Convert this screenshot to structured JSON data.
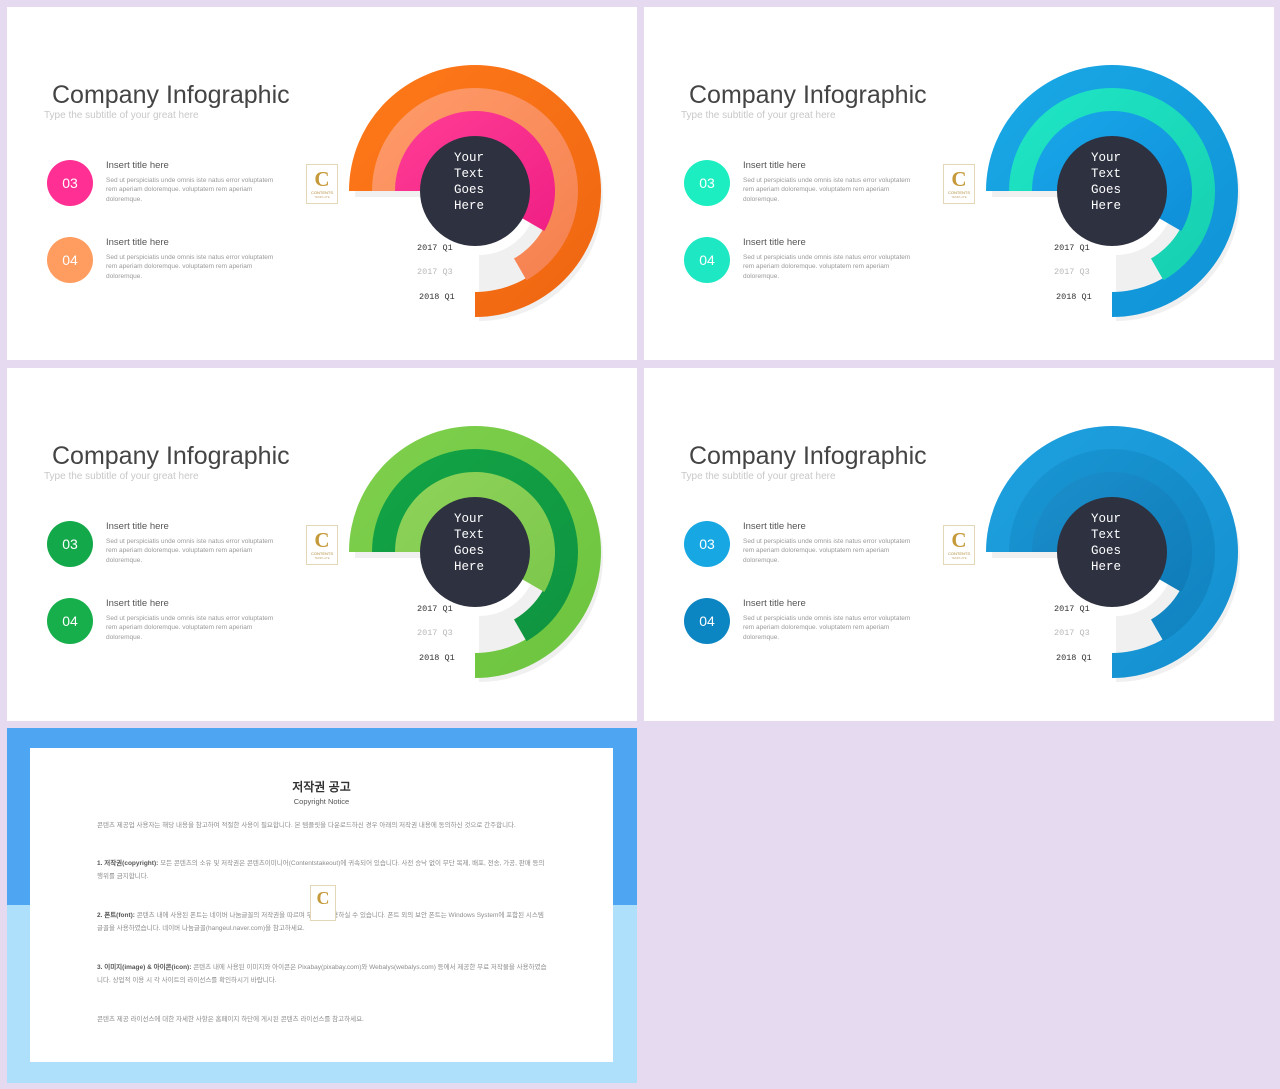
{
  "background": "#e6daf0",
  "slides": [
    {
      "title": "Company Infographic",
      "subtitle": "Type the subtitle of your great here",
      "center_text": [
        "Your",
        "Text",
        "Goes",
        "Here"
      ],
      "labels": [
        "2017 Q1",
        "2017 Q3",
        "2018 Q1"
      ],
      "item_colors": [
        "#ff2f93",
        "#ff9c5f"
      ],
      "ring_colors": [
        [
          "#ff7a1a",
          "#ee6510"
        ],
        [
          "#ff9c6a",
          "#f5804f"
        ],
        [
          "#ff3d95",
          "#f01f84"
        ]
      ],
      "logo": {
        "letter": "C",
        "text": "CONTENTS",
        "sub": "TEMPLATE"
      }
    },
    {
      "title": "Company Infographic",
      "subtitle": "Type the subtitle of your great here",
      "center_text": [
        "Your",
        "Text",
        "Goes",
        "Here"
      ],
      "labels": [
        "2017 Q1",
        "2017 Q3",
        "2018 Q1"
      ],
      "item_colors": [
        "#1deec2",
        "#1ee8c3"
      ],
      "ring_colors": [
        [
          "#1aa9e6",
          "#0f92d6"
        ],
        [
          "#1fe6c6",
          "#16cfb0"
        ],
        [
          "#19a7ea",
          "#0f8fd8"
        ]
      ],
      "logo": {
        "letter": "C",
        "text": "CONTENTS",
        "sub": "TEMPLATE"
      }
    },
    {
      "title": "Company Infographic",
      "subtitle": "Type the subtitle of your great here",
      "center_text": [
        "Your",
        "Text",
        "Goes",
        "Here"
      ],
      "labels": [
        "2017 Q1",
        "2017 Q3",
        "2018 Q1"
      ],
      "item_colors": [
        "#13a94a",
        "#17ae4c"
      ],
      "ring_colors": [
        [
          "#7fd04d",
          "#6cc43e"
        ],
        [
          "#13a446",
          "#0f9440"
        ],
        [
          "#8fd35a",
          "#7cc84c"
        ]
      ],
      "logo": {
        "letter": "C",
        "text": "CONTENTS",
        "sub": "TEMPLATE"
      }
    },
    {
      "title": "Company Infographic",
      "subtitle": "Type the subtitle of your great here",
      "center_text": [
        "Your",
        "Text",
        "Goes",
        "Here"
      ],
      "labels": [
        "2017 Q1",
        "2017 Q3",
        "2018 Q1"
      ],
      "item_colors": [
        "#17a8e4",
        "#0c86c2"
      ],
      "ring_colors": [
        [
          "#1fa1df",
          "#148fcf"
        ],
        [
          "#1996d4",
          "#1083c0"
        ],
        [
          "#1b8fcc",
          "#0f7cb8"
        ]
      ],
      "logo": {
        "letter": "C",
        "text": "CONTENTS",
        "sub": "TEMPLATE"
      }
    }
  ],
  "items": [
    {
      "number": "03",
      "title": "Insert title here",
      "body": "Sed ut perspiciatis unde omnis iste natus error voluptatem rem aperiam doloremque. voluptatem rem aperiam doloremque."
    },
    {
      "number": "04",
      "title": "Insert title here",
      "body": "Sed ut perspiciatis unde omnis iste natus error voluptatem rem aperiam doloremque. voluptatem rem aperiam doloremque."
    }
  ],
  "notice": {
    "title": "저작권 공고",
    "subtitle": "Copyright Notice",
    "colors": {
      "top": "#4ea6f3",
      "bottom": "#aedffb"
    },
    "paragraphs": [
      {
        "heading": "",
        "text": "콘텐츠 제공업 사용자는 해당 내용을 참고하여 적절한 사용이 필요합니다. 본 템플릿을 다운로드하신 경우 아래의 저작권 내용에 동의하신 것으로 간주합니다."
      },
      {
        "heading": "1. 저작권(copyright):",
        "text": " 모든 콘텐츠의 소유 및 저작권은 콘텐츠이미니어(Contentstakeout)에 귀속되어 있습니다. 사전 승낙 없이 무단 복제, 배포, 전송, 가공, 판매 등의 행위를 금지합니다."
      },
      {
        "heading": "2. 폰트(font):",
        "text": " 콘텐츠 내에 사용된 폰트는 네이버 나눔글꼴의 저작권을 따르며 무료로 사용하실 수 있습니다. 폰트 외의 보안 폰트는 Windows System에 포함된 시스템 글꼴을 사용하였습니다. 네이버 나눔글꼴(hangeul.naver.com)을 참고하세요."
      },
      {
        "heading": "3. 이미지(image) & 아이콘(icon):",
        "text": " 콘텐츠 내에 사용된 이미지와 아이콘은 Pixabay(pixabay.com)와 Webalys(webalys.com) 등에서 제공한 무료 저작물을 사용하였습니다. 상업적 이용 시 각 사이트의 라이선스를 확인하시기 바랍니다."
      },
      {
        "heading": "",
        "text": "콘텐츠 제공 라이선스에 대한 자세한 사항은 홈페이지 하단에 게시된 콘텐츠 라이선스를 참고하세요."
      }
    ]
  }
}
